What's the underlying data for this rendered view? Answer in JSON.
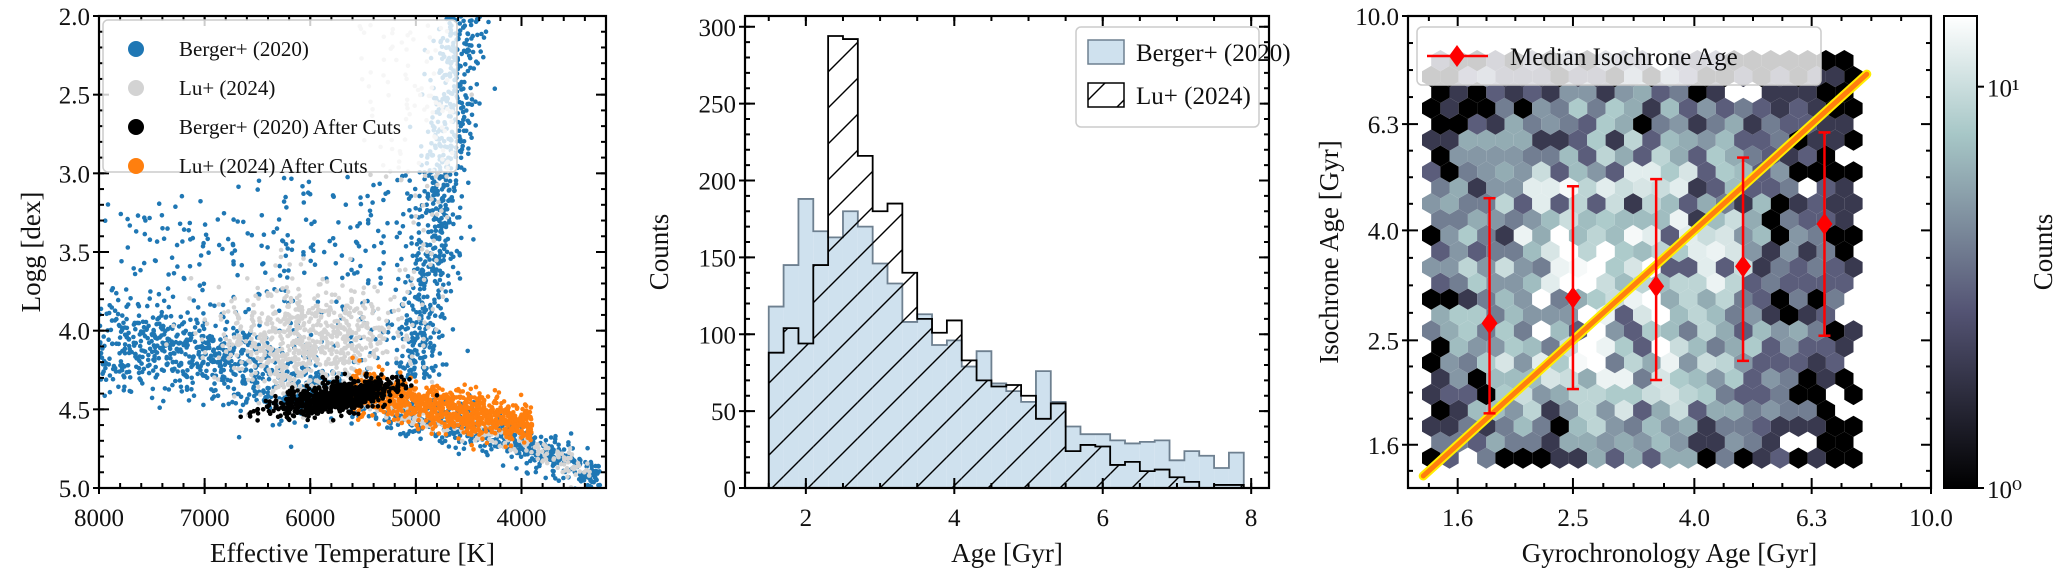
{
  "chart_data": [
    {
      "type": "scatter",
      "xlabel": "Effective Temperature [K]",
      "ylabel": "Logg [dex]",
      "xlim": [
        8000,
        3200
      ],
      "ylim": [
        5.0,
        2.0
      ],
      "xticks": [
        8000,
        7000,
        6000,
        5000,
        4000
      ],
      "xticklabels": [
        "8000",
        "7000",
        "6000",
        "5000",
        "4000"
      ],
      "yticks": [
        2.0,
        2.5,
        3.0,
        3.5,
        4.0,
        4.5,
        5.0
      ],
      "yticklabels": [
        "2.0",
        "2.5",
        "3.0",
        "3.5",
        "4.0",
        "4.5",
        "5.0"
      ],
      "legend_position": "top-left",
      "series": [
        {
          "name": "Berger+ (2020)",
          "color": "#1f77b4",
          "regions": [
            {
              "kind": "main-sequence",
              "teff": [
                8000,
                3200
              ],
              "logg": [
                4.0,
                4.95
              ]
            },
            {
              "kind": "giant-branch",
              "teff": [
                5100,
                4400
              ],
              "logg": [
                2.0,
                4.3
              ]
            },
            {
              "kind": "subgiants",
              "teff": [
                7800,
                5000
              ],
              "logg": [
                3.0,
                4.3
              ]
            }
          ]
        },
        {
          "name": "Lu+ (2024)",
          "color": "#d3d3d3",
          "regions": [
            {
              "kind": "core",
              "teff": [
                6800,
                5100
              ],
              "logg": [
                3.6,
                4.4
              ]
            },
            {
              "kind": "main-sequence",
              "teff": [
                6500,
                3300
              ],
              "logg": [
                4.3,
                4.9
              ]
            }
          ]
        },
        {
          "name": "Berger+ (2020) After Cuts",
          "color": "#000000",
          "regions": [
            {
              "kind": "cut-sample",
              "teff": [
                6450,
                4950
              ],
              "logg": [
                4.32,
                4.62
              ]
            }
          ]
        },
        {
          "name": "Lu+ (2024) After Cuts",
          "color": "#ff7f0e",
          "regions": [
            {
              "kind": "cut-sample",
              "teff": [
                5600,
                3880
              ],
              "logg": [
                4.27,
                4.74
              ]
            }
          ]
        }
      ]
    },
    {
      "type": "bar",
      "subtype": "histogram",
      "xlabel": "Age [Gyr]",
      "ylabel": "Counts",
      "xlim": [
        1.18,
        8.24
      ],
      "ylim": [
        0,
        307
      ],
      "xticks": [
        2,
        4,
        6,
        8
      ],
      "xticklabels": [
        "2",
        "4",
        "6",
        "8"
      ],
      "yticks": [
        0,
        50,
        100,
        150,
        200,
        250,
        300
      ],
      "yticklabels": [
        "0",
        "50",
        "100",
        "150",
        "200",
        "250",
        "300"
      ],
      "bin_start": 1.5,
      "bin_width": 0.2,
      "legend_position": "top-right",
      "series": [
        {
          "name": "Berger+ (2020)",
          "style": "filled",
          "color": "#cfe1ee",
          "values": [
            118,
            145,
            188,
            167,
            163,
            180,
            170,
            146,
            133,
            108,
            113,
            93,
            96,
            79,
            89,
            68,
            63,
            56,
            76,
            56,
            40,
            35,
            35,
            31,
            29,
            30,
            31,
            18,
            24,
            21,
            13,
            23
          ]
        },
        {
          "name": "Lu+ (2024)",
          "style": "hatched",
          "color": "#000000",
          "values": [
            88,
            104,
            94,
            145,
            294,
            292,
            216,
            180,
            185,
            140,
            110,
            101,
            109,
            83,
            70,
            66,
            67,
            60,
            45,
            55,
            24,
            28,
            27,
            15,
            17,
            11,
            12,
            7,
            4,
            0,
            2,
            2
          ]
        }
      ]
    },
    {
      "type": "heatmap",
      "subtype": "hexbin",
      "xlabel": "Gyrochronology Age [Gyr]",
      "ylabel": "Isochrone Age [Gyr]",
      "xscale": "log",
      "yscale": "log",
      "xlim": [
        1.32,
        10.0
      ],
      "ylim": [
        1.33,
        10.0
      ],
      "xticks": [
        1.6,
        2.5,
        4.0,
        6.3,
        10.0
      ],
      "xticklabels": [
        "1.6",
        "2.5",
        "4.0",
        "6.3",
        "10.0"
      ],
      "yticks": [
        1.6,
        2.5,
        4.0,
        6.3,
        10.0
      ],
      "yticklabels": [
        "1.6",
        "2.5",
        "4.0",
        "6.3",
        "10.0"
      ],
      "hex_extent": {
        "x": [
          1.42,
          7.6
        ],
        "y": [
          1.5,
          8.7
        ]
      },
      "density_peak": {
        "x": 2.9,
        "y": 3.2
      },
      "one_to_one_line": {
        "from": 1.4,
        "to": 7.8,
        "color": "#ff7f0e",
        "edge_color": "#ffee00"
      },
      "medians": {
        "name": "Median Isochrone Age",
        "color": "#ff0000",
        "x": [
          1.81,
          2.5,
          3.45,
          4.83,
          6.62
        ],
        "y": [
          2.69,
          3.0,
          3.15,
          3.43,
          4.11
        ],
        "y_low": [
          1.83,
          2.03,
          2.11,
          2.29,
          2.55
        ],
        "y_high": [
          4.59,
          4.83,
          4.98,
          5.46,
          6.08
        ]
      },
      "legend_position": "top-left",
      "colorbar": {
        "label": "Counts",
        "scale": "log",
        "range": [
          1,
          15
        ],
        "ticks": [
          1,
          10
        ],
        "ticklabels": [
          "10⁰",
          "10¹"
        ],
        "colormap": "bone"
      }
    }
  ]
}
